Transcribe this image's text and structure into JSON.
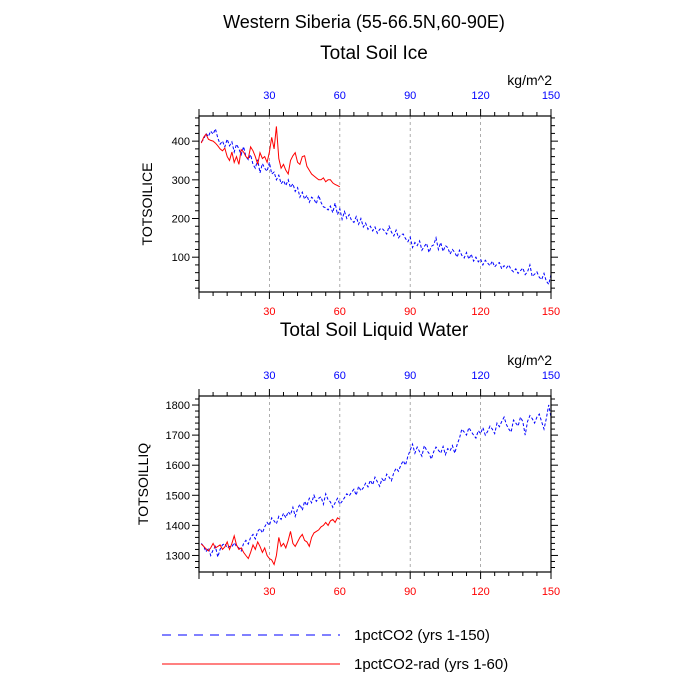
{
  "figure": {
    "suptitle": "Western Siberia (55-66.5N,60-90E)"
  },
  "legend": {
    "entries": [
      {
        "label": "1pctCO2 (yrs 1-150)",
        "color": "#0000ff",
        "style": "dashed"
      },
      {
        "label": "1pctCO2-rad (yrs 1-60)",
        "color": "#ff0000",
        "style": "solid"
      }
    ]
  },
  "chart_data": [
    {
      "type": "line",
      "title": "Total Soil Ice",
      "units": "kg/m^2",
      "ylabel": "TOTSOILICE",
      "xlabel": "",
      "xlim": [
        0,
        150
      ],
      "ylim": [
        10,
        465
      ],
      "xticks": [
        30,
        60,
        90,
        120,
        150
      ],
      "xticks_top": [
        30,
        60,
        90,
        120,
        150
      ],
      "yticks": [
        100,
        200,
        300,
        400
      ],
      "grid": "vertical dashed",
      "series": [
        {
          "name": "1pctCO2 (yrs 1-150)",
          "color": "#0000ff",
          "style": "dashed",
          "x": [
            1,
            2,
            3,
            4,
            5,
            6,
            7,
            8,
            9,
            10,
            11,
            12,
            13,
            14,
            15,
            16,
            17,
            18,
            19,
            20,
            21,
            22,
            23,
            24,
            25,
            26,
            27,
            28,
            29,
            30,
            31,
            32,
            33,
            34,
            35,
            36,
            37,
            38,
            39,
            40,
            41,
            42,
            43,
            44,
            45,
            46,
            47,
            48,
            49,
            50,
            51,
            52,
            53,
            54,
            55,
            56,
            57,
            58,
            59,
            60,
            61,
            62,
            63,
            64,
            65,
            66,
            67,
            68,
            69,
            70,
            71,
            72,
            73,
            74,
            75,
            76,
            77,
            78,
            79,
            80,
            81,
            82,
            83,
            84,
            85,
            86,
            87,
            88,
            89,
            90,
            91,
            92,
            93,
            94,
            95,
            96,
            97,
            98,
            99,
            100,
            101,
            102,
            103,
            104,
            105,
            106,
            107,
            108,
            109,
            110,
            111,
            112,
            113,
            114,
            115,
            116,
            117,
            118,
            119,
            120,
            121,
            122,
            123,
            124,
            125,
            126,
            127,
            128,
            129,
            130,
            131,
            132,
            133,
            134,
            135,
            136,
            137,
            138,
            139,
            140,
            141,
            142,
            143,
            144,
            145,
            146,
            147,
            148,
            149,
            150
          ],
          "y": [
            398,
            405,
            420,
            412,
            426,
            418,
            432,
            408,
            392,
            400,
            385,
            405,
            388,
            398,
            372,
            392,
            380,
            365,
            386,
            360,
            352,
            365,
            340,
            330,
            352,
            318,
            342,
            330,
            322,
            345,
            315,
            320,
            300,
            312,
            290,
            298,
            285,
            300,
            280,
            290,
            270,
            280,
            255,
            268,
            250,
            260,
            242,
            255,
            250,
            238,
            260,
            242,
            230,
            228,
            222,
            232,
            215,
            240,
            210,
            225,
            198,
            218,
            200,
            210,
            195,
            190,
            205,
            185,
            200,
            178,
            188,
            172,
            180,
            168,
            178,
            162,
            172,
            175,
            168,
            160,
            180,
            165,
            155,
            170,
            150,
            158,
            160,
            148,
            140,
            152,
            125,
            138,
            130,
            142,
            118,
            128,
            136,
            112,
            128,
            132,
            150,
            120,
            138,
            115,
            130,
            125,
            108,
            120,
            112,
            100,
            118,
            105,
            98,
            112,
            95,
            108,
            90,
            100,
            88,
            95,
            80,
            92,
            85,
            78,
            90,
            75,
            82,
            86,
            70,
            78,
            72,
            80,
            68,
            62,
            70,
            58,
            65,
            72,
            55,
            62,
            80,
            50,
            56,
            62,
            48,
            42,
            58,
            38,
            30,
            55
          ]
        },
        {
          "name": "1pctCO2-rad (yrs 1-60)",
          "color": "#ff0000",
          "style": "solid",
          "x": [
            1,
            2,
            3,
            4,
            5,
            6,
            7,
            8,
            9,
            10,
            11,
            12,
            13,
            14,
            15,
            16,
            17,
            18,
            19,
            20,
            21,
            22,
            23,
            24,
            25,
            26,
            27,
            28,
            29,
            30,
            31,
            32,
            33,
            34,
            35,
            36,
            37,
            38,
            39,
            40,
            41,
            42,
            43,
            44,
            45,
            46,
            47,
            48,
            49,
            50,
            51,
            52,
            53,
            54,
            55,
            56,
            57,
            58,
            59,
            60
          ],
          "y": [
            395,
            410,
            418,
            405,
            402,
            400,
            395,
            388,
            380,
            375,
            382,
            360,
            350,
            372,
            345,
            360,
            340,
            378,
            372,
            360,
            355,
            385,
            375,
            360,
            340,
            370,
            355,
            360,
            345,
            372,
            410,
            380,
            438,
            355,
            330,
            340,
            325,
            315,
            350,
            362,
            370,
            345,
            340,
            360,
            362,
            335,
            325,
            315,
            310,
            305,
            300,
            300,
            305,
            295,
            300,
            300,
            292,
            288,
            285,
            282
          ]
        }
      ]
    },
    {
      "type": "line",
      "title": "Total Soil Liquid Water",
      "units": "kg/m^2",
      "ylabel": "TOTSOILLIQ",
      "xlabel": "",
      "xlim": [
        0,
        150
      ],
      "ylim": [
        1245,
        1830
      ],
      "xticks": [
        30,
        60,
        90,
        120,
        150
      ],
      "xticks_top": [
        30,
        60,
        90,
        120,
        150
      ],
      "yticks": [
        1300,
        1400,
        1500,
        1600,
        1700,
        1800
      ],
      "grid": "vertical dashed",
      "series": [
        {
          "name": "1pctCO2 (yrs 1-150)",
          "color": "#0000ff",
          "style": "dashed",
          "x": [
            1,
            2,
            3,
            4,
            5,
            6,
            7,
            8,
            9,
            10,
            11,
            12,
            13,
            14,
            15,
            16,
            17,
            18,
            19,
            20,
            21,
            22,
            23,
            24,
            25,
            26,
            27,
            28,
            29,
            30,
            31,
            32,
            33,
            34,
            35,
            36,
            37,
            38,
            39,
            40,
            41,
            42,
            43,
            44,
            45,
            46,
            47,
            48,
            49,
            50,
            51,
            52,
            53,
            54,
            55,
            56,
            57,
            58,
            59,
            60,
            61,
            62,
            63,
            64,
            65,
            66,
            67,
            68,
            69,
            70,
            71,
            72,
            73,
            74,
            75,
            76,
            77,
            78,
            79,
            80,
            81,
            82,
            83,
            84,
            85,
            86,
            87,
            88,
            89,
            90,
            91,
            92,
            93,
            94,
            95,
            96,
            97,
            98,
            99,
            100,
            101,
            102,
            103,
            104,
            105,
            106,
            107,
            108,
            109,
            110,
            111,
            112,
            113,
            114,
            115,
            116,
            117,
            118,
            119,
            120,
            121,
            122,
            123,
            124,
            125,
            126,
            127,
            128,
            129,
            130,
            131,
            132,
            133,
            134,
            135,
            136,
            137,
            138,
            139,
            140,
            141,
            142,
            143,
            144,
            145,
            146,
            147,
            148,
            149,
            150
          ],
          "y": [
            1340,
            1330,
            1312,
            1325,
            1300,
            1318,
            1330,
            1295,
            1320,
            1335,
            1340,
            1325,
            1330,
            1328,
            1342,
            1330,
            1325,
            1315,
            1340,
            1350,
            1338,
            1360,
            1370,
            1355,
            1380,
            1390,
            1375,
            1395,
            1410,
            1400,
            1425,
            1415,
            1405,
            1430,
            1420,
            1440,
            1425,
            1445,
            1435,
            1460,
            1430,
            1455,
            1470,
            1450,
            1480,
            1465,
            1490,
            1475,
            1500,
            1480,
            1490,
            1495,
            1470,
            1505,
            1485,
            1478,
            1460,
            1475,
            1490,
            1470,
            1480,
            1492,
            1505,
            1498,
            1510,
            1520,
            1500,
            1530,
            1515,
            1525,
            1540,
            1528,
            1550,
            1535,
            1560,
            1545,
            1530,
            1555,
            1545,
            1570,
            1560,
            1548,
            1575,
            1590,
            1580,
            1600,
            1615,
            1600,
            1630,
            1650,
            1670,
            1640,
            1660,
            1645,
            1630,
            1665,
            1650,
            1640,
            1620,
            1645,
            1660,
            1650,
            1640,
            1662,
            1635,
            1655,
            1648,
            1665,
            1640,
            1668,
            1690,
            1720,
            1710,
            1700,
            1725,
            1712,
            1700,
            1690,
            1715,
            1705,
            1725,
            1700,
            1712,
            1730,
            1720,
            1705,
            1740,
            1728,
            1745,
            1760,
            1735,
            1720,
            1710,
            1750,
            1740,
            1730,
            1760,
            1745,
            1700,
            1745,
            1765,
            1755,
            1740,
            1760,
            1770,
            1745,
            1720,
            1755,
            1800,
            1760
          ]
        },
        {
          "name": "1pctCO2-rad (yrs 1-60)",
          "color": "#ff0000",
          "style": "solid",
          "x": [
            1,
            2,
            3,
            4,
            5,
            6,
            7,
            8,
            9,
            10,
            11,
            12,
            13,
            14,
            15,
            16,
            17,
            18,
            19,
            20,
            21,
            22,
            23,
            24,
            25,
            26,
            27,
            28,
            29,
            30,
            31,
            32,
            33,
            34,
            35,
            36,
            37,
            38,
            39,
            40,
            41,
            42,
            43,
            44,
            45,
            46,
            47,
            48,
            49,
            50,
            51,
            52,
            53,
            54,
            55,
            56,
            57,
            58,
            59,
            60
          ],
          "y": [
            1338,
            1330,
            1322,
            1315,
            1325,
            1340,
            1325,
            1330,
            1335,
            1320,
            1328,
            1345,
            1320,
            1340,
            1365,
            1335,
            1320,
            1325,
            1310,
            1300,
            1290,
            1310,
            1335,
            1320,
            1345,
            1330,
            1310,
            1325,
            1300,
            1290,
            1285,
            1270,
            1300,
            1360,
            1330,
            1340,
            1325,
            1350,
            1380,
            1340,
            1330,
            1345,
            1360,
            1370,
            1350,
            1345,
            1330,
            1360,
            1375,
            1380,
            1385,
            1395,
            1400,
            1410,
            1400,
            1415,
            1420,
            1410,
            1425,
            1420
          ]
        }
      ]
    }
  ]
}
